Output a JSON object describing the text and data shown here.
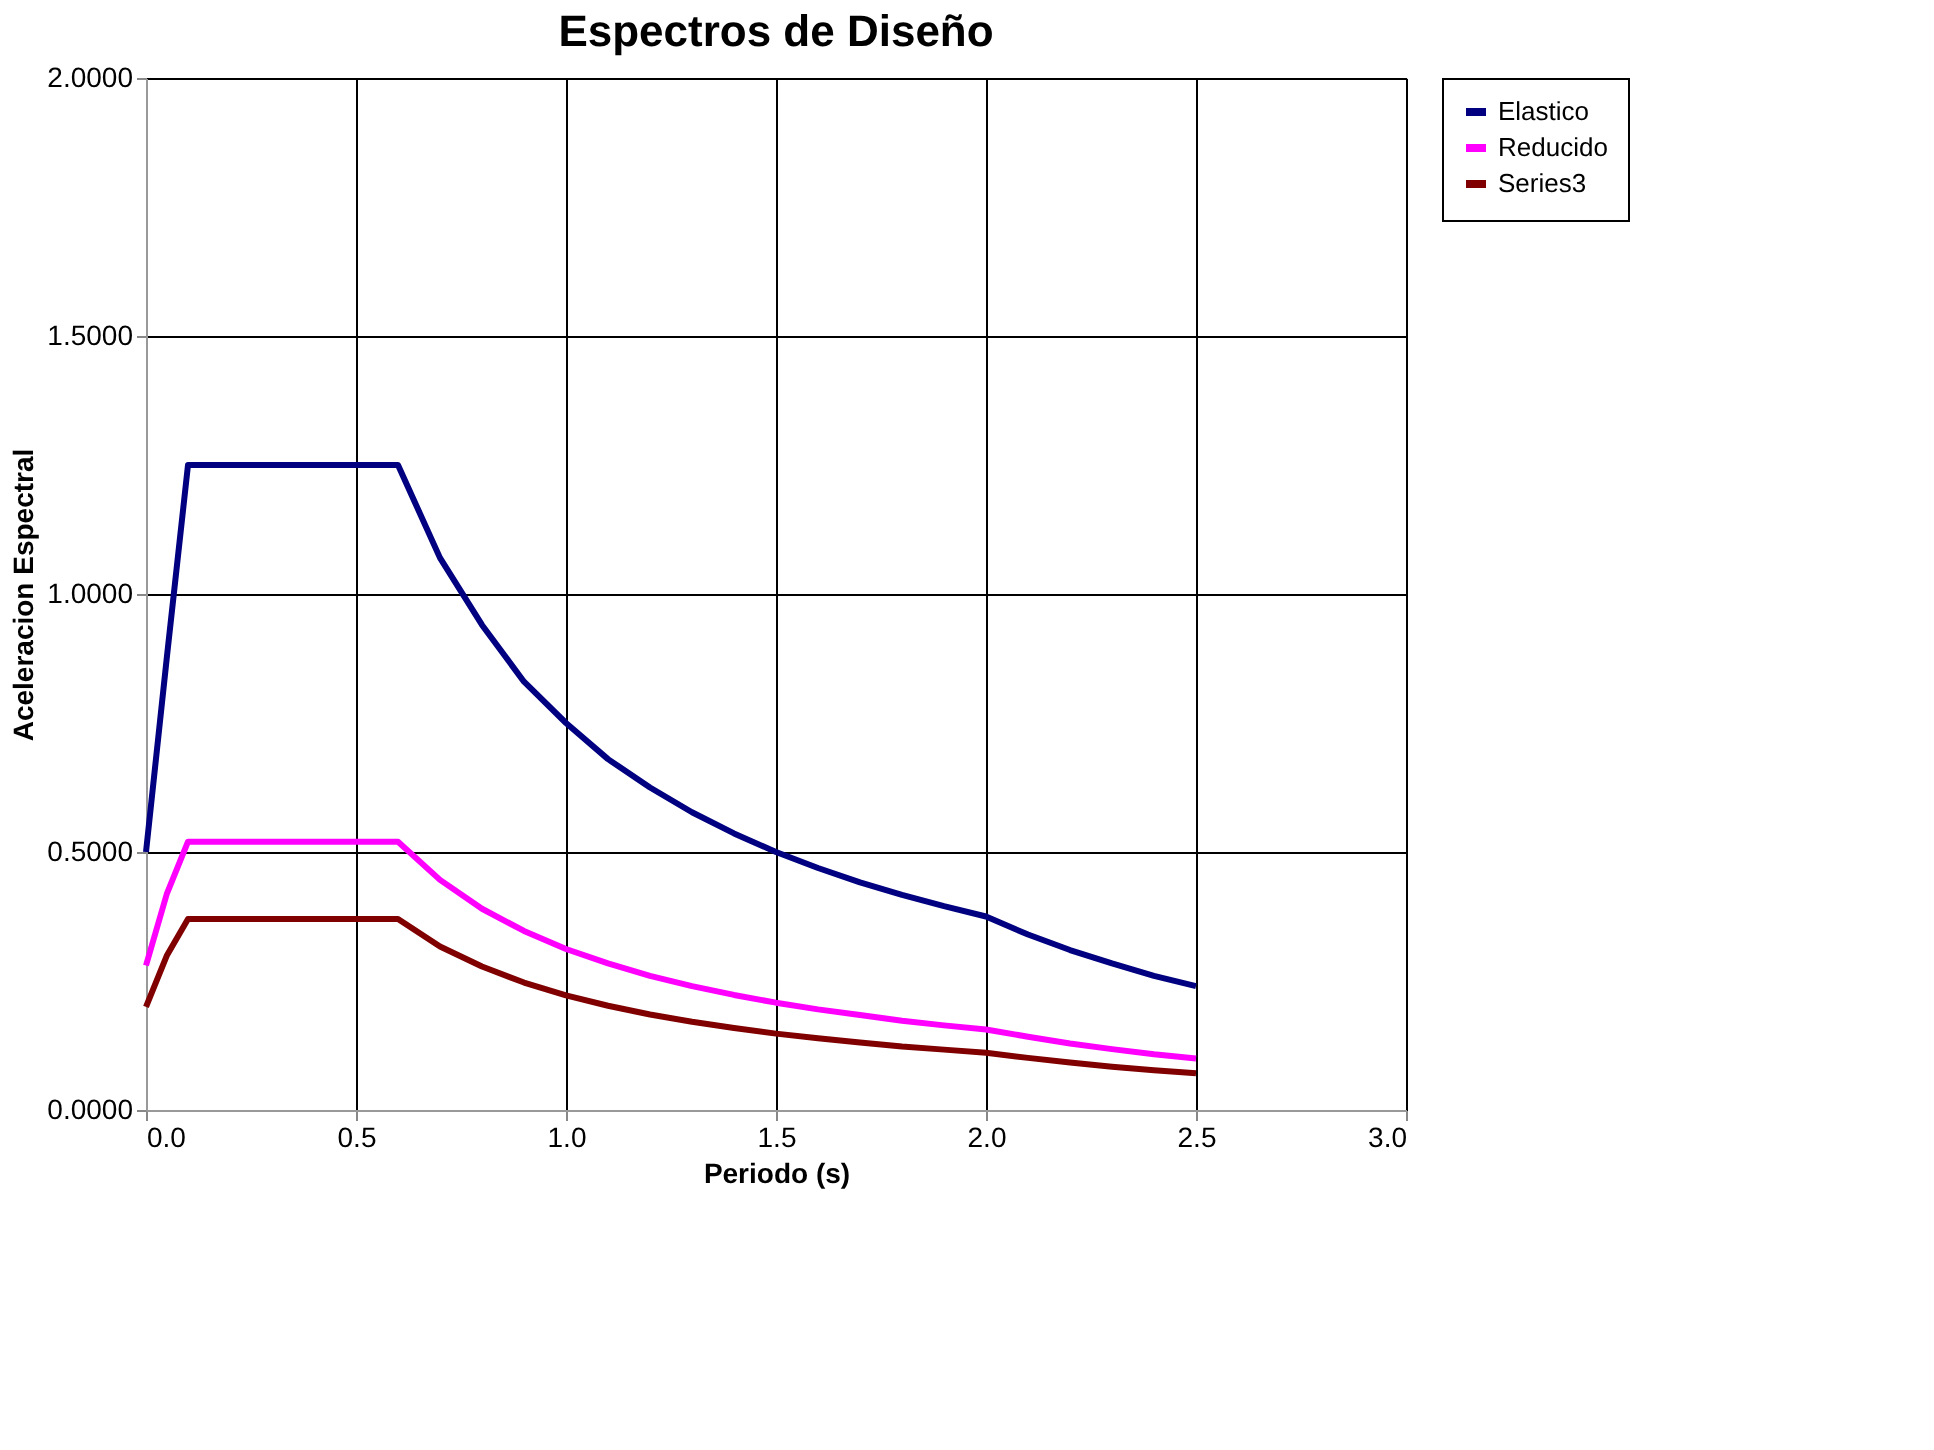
{
  "chart_data": {
    "type": "line",
    "title": "Espectros de Diseño",
    "xlabel": "Periodo (s)",
    "ylabel": "Aceleracion Espectral",
    "x": [
      0,
      0.05,
      0.1,
      0.2,
      0.3,
      0.4,
      0.5,
      0.6,
      0.7,
      0.8,
      0.9,
      1.0,
      1.1,
      1.2,
      1.3,
      1.4,
      1.5,
      1.6,
      1.7,
      1.8,
      1.9,
      2.0,
      2.1,
      2.2,
      2.3,
      2.4,
      2.5
    ],
    "series": [
      {
        "name": "Elastico",
        "color": "#000080",
        "values": [
          0.5,
          0.88,
          1.25,
          1.25,
          1.25,
          1.25,
          1.25,
          1.25,
          1.07,
          0.94,
          0.83,
          0.75,
          0.68,
          0.625,
          0.577,
          0.536,
          0.5,
          0.469,
          0.441,
          0.417,
          0.395,
          0.375,
          0.34,
          0.31,
          0.284,
          0.26,
          0.24
        ]
      },
      {
        "name": "Reducido",
        "color": "#ff00ff",
        "values": [
          0.28,
          0.42,
          0.52,
          0.52,
          0.52,
          0.52,
          0.52,
          0.52,
          0.446,
          0.39,
          0.347,
          0.312,
          0.284,
          0.26,
          0.24,
          0.223,
          0.208,
          0.195,
          0.184,
          0.173,
          0.164,
          0.156,
          0.142,
          0.129,
          0.118,
          0.108,
          0.1
        ]
      },
      {
        "name": "Series3",
        "color": "#800000",
        "values": [
          0.2,
          0.3,
          0.37,
          0.37,
          0.37,
          0.37,
          0.37,
          0.37,
          0.317,
          0.278,
          0.247,
          0.222,
          0.202,
          0.185,
          0.171,
          0.159,
          0.148,
          0.139,
          0.131,
          0.123,
          0.117,
          0.111,
          0.101,
          0.092,
          0.084,
          0.077,
          0.071
        ]
      }
    ],
    "xlim": [
      0,
      3.0
    ],
    "xticks": [
      {
        "value": 0,
        "label": "0.0"
      },
      0.5,
      {
        "value": 1,
        "label": "1.0"
      },
      1.5,
      {
        "value": 2,
        "label": "2.0"
      },
      2.5,
      {
        "value": 3,
        "label": "3.0"
      }
    ],
    "ylim": [
      0,
      2.0
    ],
    "yticks": [
      {
        "value": 0,
        "label": "0.0000"
      },
      {
        "value": 0.5,
        "label": "0.5000"
      },
      {
        "value": 1,
        "label": "1.0000"
      },
      {
        "value": 1.5,
        "label": "1.5000"
      },
      {
        "value": 2,
        "label": "2.0000"
      }
    ],
    "grid": true,
    "legend": "right",
    "marker": "none",
    "line_style": "solid"
  }
}
